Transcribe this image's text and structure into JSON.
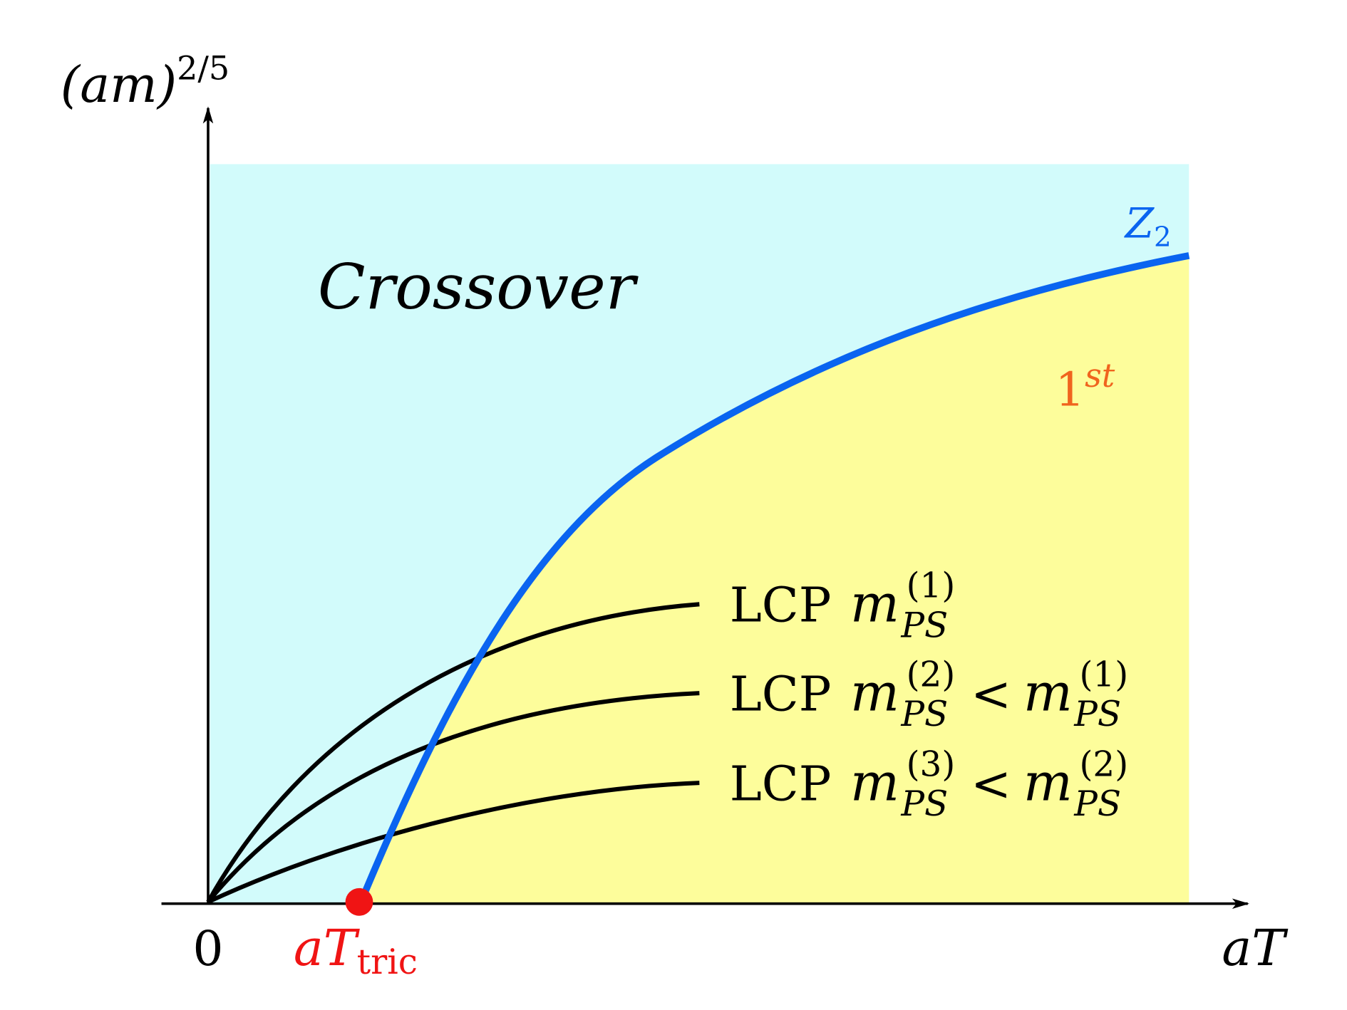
{
  "axes": {
    "y_label": {
      "text": "(am)",
      "sup": "2/5"
    },
    "x_label": "aT",
    "origin": "0",
    "tricritical": {
      "text": "aT",
      "sub": "tric"
    }
  },
  "regions": {
    "crossover": "Crossover",
    "first_order": {
      "text": "1",
      "sup": "st"
    }
  },
  "curves": {
    "z2": {
      "text": "Z",
      "sub": "2"
    },
    "lcp": [
      {
        "prefix": "LCP",
        "terms": [
          {
            "base": "m",
            "sup": "(1)",
            "sub": "PS"
          }
        ]
      },
      {
        "prefix": "LCP",
        "relation": "<",
        "terms": [
          {
            "base": "m",
            "sup": "(2)",
            "sub": "PS"
          },
          {
            "base": "m",
            "sup": "(1)",
            "sub": "PS"
          }
        ]
      },
      {
        "prefix": "LCP",
        "relation": "<",
        "terms": [
          {
            "base": "m",
            "sup": "(3)",
            "sub": "PS"
          },
          {
            "base": "m",
            "sup": "(2)",
            "sub": "PS"
          }
        ]
      }
    ]
  }
}
